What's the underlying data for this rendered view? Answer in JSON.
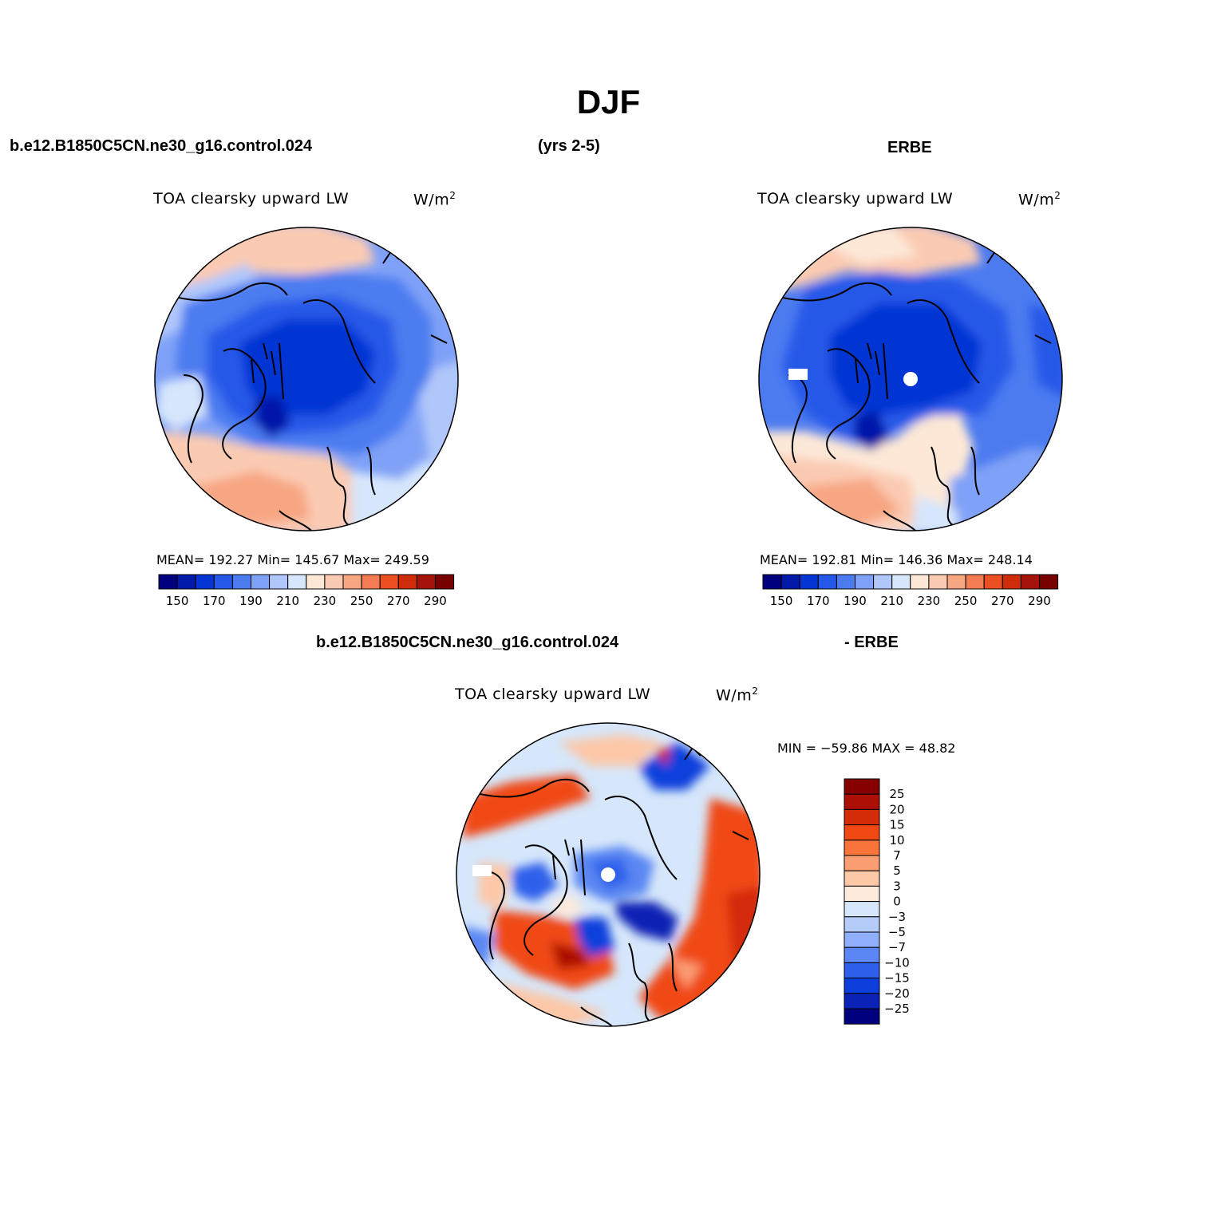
{
  "header": {
    "title": "DJF",
    "case_name": "b.e12.B1850C5CN.ne30_g16.control.024",
    "years": "(yrs 2-5)",
    "obs_name": "ERBE",
    "diff_case": "b.e12.B1850C5CN.ne30_g16.control.024",
    "diff_obs": "- ERBE"
  },
  "panels": {
    "model": {
      "variable": "TOA clearsky upward LW",
      "units_base": "W/m",
      "units_exp": "2",
      "stats": "MEAN= 192.27   Min= 145.67   Max= 249.59"
    },
    "obs": {
      "variable": "TOA clearsky upward LW",
      "units_base": "W/m",
      "units_exp": "2",
      "stats": "MEAN= 192.81   Min= 146.36   Max= 248.14"
    },
    "diff": {
      "variable": "TOA clearsky upward LW",
      "units_base": "W/m",
      "units_exp": "2",
      "stats": "MIN = −59.86 MAX =  48.82"
    }
  },
  "colorbars": {
    "absolute": {
      "colors": [
        "#00007f",
        "#0019a9",
        "#0536d4",
        "#2558e8",
        "#4c7bf0",
        "#7fa1f7",
        "#b1c7fb",
        "#d6e6fb",
        "#fde8d7",
        "#fbcab2",
        "#f7a682",
        "#f37c52",
        "#ec4f22",
        "#cf2c0b",
        "#a5130a",
        "#770000"
      ],
      "tick_labels": [
        "150",
        "170",
        "190",
        "210",
        "230",
        "250",
        "270",
        "290"
      ]
    },
    "difference": {
      "colors": [
        "#870000",
        "#ac0f04",
        "#d42c08",
        "#f04a12",
        "#f9743b",
        "#fb9d73",
        "#fcc8a8",
        "#fdeadb",
        "#d6e7fb",
        "#b5ccf9",
        "#91afff",
        "#5a87f3",
        "#2f60eb",
        "#0c3fdc",
        "#0a22b5",
        "#00007f"
      ],
      "tick_labels": [
        "25",
        "20",
        "15",
        "10",
        "7",
        "5",
        "3",
        "0",
        "−3",
        "−5",
        "−7",
        "−10",
        "−15",
        "−20",
        "−25"
      ]
    }
  }
}
